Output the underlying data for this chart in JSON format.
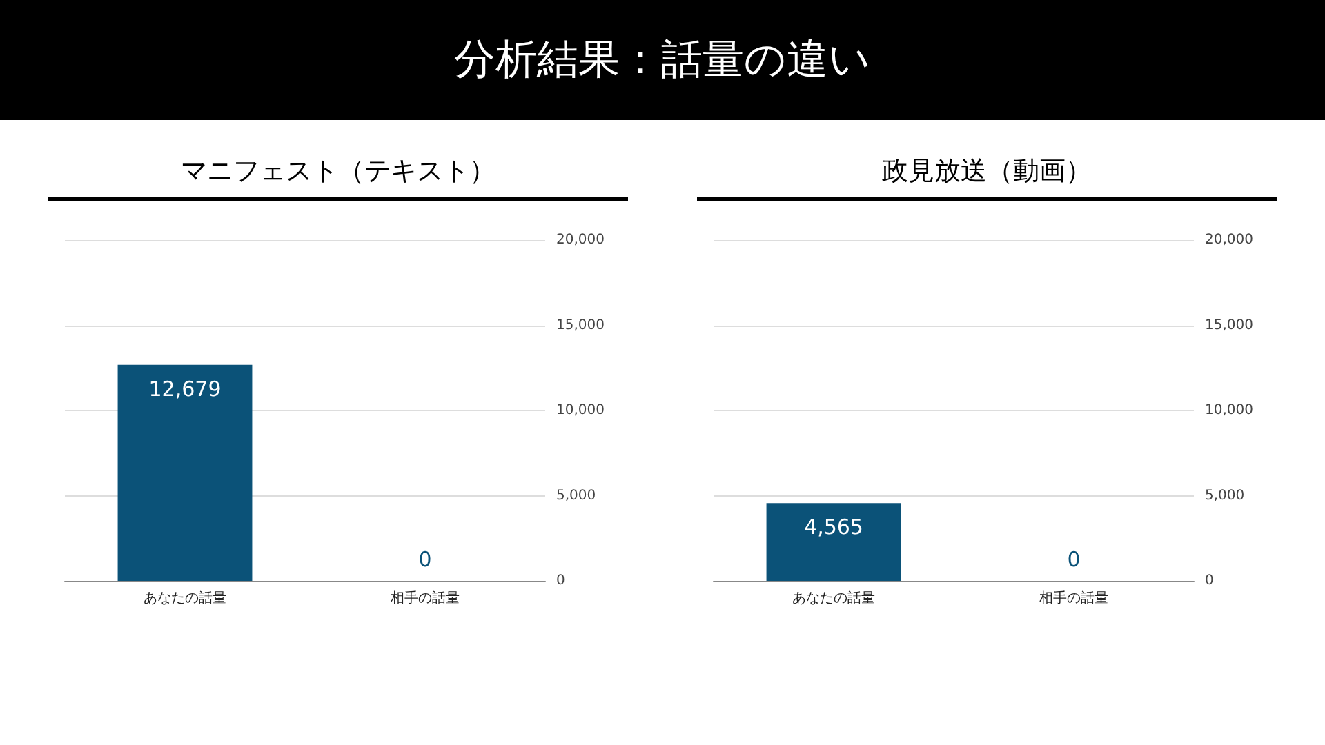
{
  "chart_data": [
    {
      "type": "other",
      "title": "分析結果：話量の違い"
    },
    {
      "type": "bar",
      "title": "マニフェスト（テキスト）",
      "categories": [
        "あなたの話量",
        "相手の話量"
      ],
      "values": [
        12679,
        0
      ],
      "color": "#0b5278",
      "value_labels": [
        "12,679",
        "0"
      ],
      "ylim": [
        0,
        20000
      ],
      "yticks": [
        0,
        {
          "value": 5000,
          "label": "5,000"
        },
        {
          "value": 10000,
          "label": "10,000"
        },
        {
          "value": 15000,
          "label": "15,000"
        },
        {
          "value": 20000,
          "label": "20,000"
        }
      ],
      "grid": "y"
    },
    {
      "type": "bar",
      "title": "政見放送（動画）",
      "categories": [
        "あなたの話量",
        "相手の話量"
      ],
      "values": [
        4565,
        0
      ],
      "color": "#0b5278",
      "value_labels": [
        "4,565",
        "0"
      ],
      "ylim": [
        0,
        20000
      ],
      "yticks": [
        0,
        {
          "value": 5000,
          "label": "5,000"
        },
        {
          "value": 10000,
          "label": "10,000"
        },
        {
          "value": 15000,
          "label": "15,000"
        },
        {
          "value": 20000,
          "label": "20,000"
        }
      ],
      "grid": "y"
    }
  ]
}
